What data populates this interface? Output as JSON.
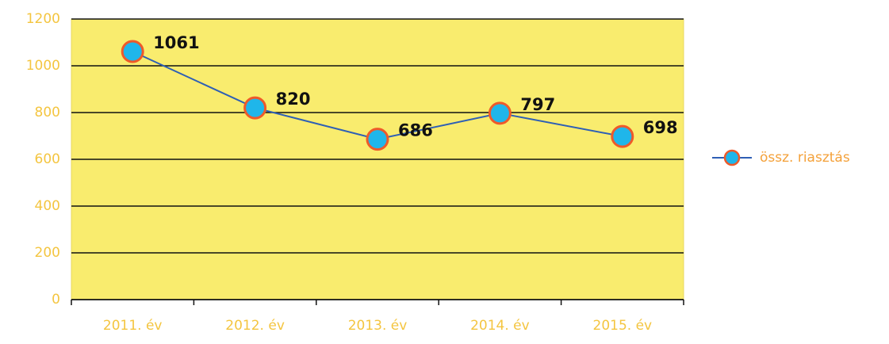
{
  "chart_data": {
    "type": "line",
    "categories": [
      "2011. év",
      "2012. év",
      "2013. év",
      "2014. év",
      "2015. év"
    ],
    "series": [
      {
        "name": "össz. riasztás",
        "color": "#2e5fb5",
        "marker_color": "#1fb6ea",
        "marker_edge": "#ee5a2a",
        "values": [
          1061,
          820,
          686,
          797,
          698
        ]
      }
    ],
    "ylim": [
      0,
      1200
    ],
    "yticks": [
      0,
      200,
      400,
      600,
      800,
      1000,
      1200
    ],
    "grid": true,
    "legend": "right",
    "plot_background": "#f9ec6e"
  }
}
